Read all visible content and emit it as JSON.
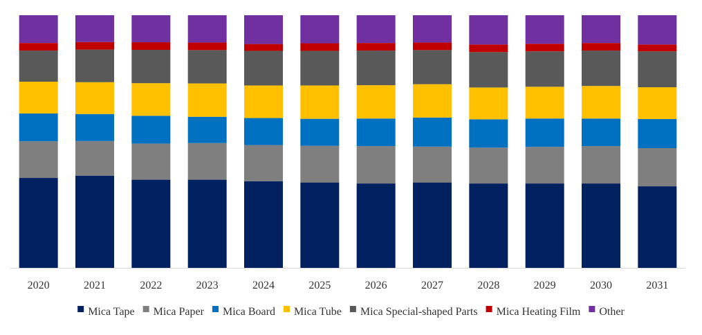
{
  "chart_data": {
    "type": "bar",
    "stacked": true,
    "normalized": true,
    "title": "",
    "xlabel": "",
    "ylabel": "",
    "ylim": [
      0,
      100
    ],
    "grid": false,
    "legend_position": "bottom",
    "categories": [
      "2020",
      "2021",
      "2022",
      "2023",
      "2024",
      "2025",
      "2026",
      "2027",
      "2028",
      "2029",
      "2030",
      "2031"
    ],
    "series": [
      {
        "name": "Mica Tape",
        "color": "#002060",
        "values": [
          35.6,
          36.5,
          34.9,
          34.9,
          34.3,
          33.8,
          33.4,
          33.8,
          33.4,
          33.4,
          33.4,
          32.3
        ]
      },
      {
        "name": "Mica Paper",
        "color": "#7F7F7F",
        "values": [
          14.5,
          13.7,
          14.3,
          14.5,
          14.3,
          14.5,
          14.8,
          14.2,
          14.2,
          14.5,
          14.8,
          15.1
        ]
      },
      {
        "name": "Mica Board",
        "color": "#0070C0",
        "values": [
          11.0,
          10.7,
          11.0,
          10.4,
          10.7,
          10.7,
          10.9,
          11.5,
          11.2,
          11.2,
          10.9,
          11.5
        ]
      },
      {
        "name": "Mica Tube",
        "color": "#FFC000",
        "values": [
          12.6,
          12.6,
          12.9,
          13.2,
          12.9,
          13.2,
          13.2,
          13.2,
          12.6,
          12.6,
          12.9,
          12.6
        ]
      },
      {
        "name": "Mica Special-shaped Parts",
        "color": "#595959",
        "values": [
          12.3,
          12.9,
          13.2,
          13.2,
          13.7,
          13.7,
          13.7,
          13.5,
          14.0,
          14.0,
          14.0,
          14.2
        ]
      },
      {
        "name": "Mica Heating Film",
        "color": "#C00000",
        "values": [
          3.0,
          3.0,
          3.0,
          3.0,
          2.7,
          3.0,
          3.0,
          3.0,
          3.0,
          3.0,
          3.0,
          2.7
        ]
      },
      {
        "name": "Other",
        "color": "#7030A0",
        "values": [
          11.0,
          10.6,
          10.7,
          10.8,
          11.4,
          11.1,
          11.0,
          10.8,
          11.6,
          11.3,
          11.0,
          11.6
        ]
      }
    ]
  }
}
